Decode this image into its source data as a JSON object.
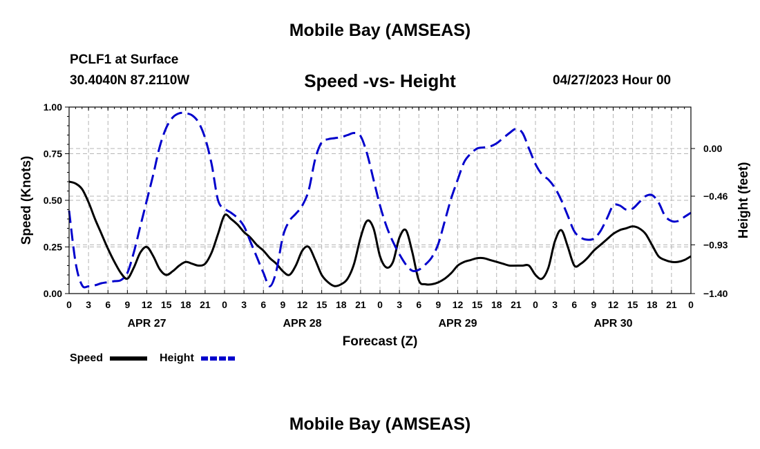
{
  "page": {
    "title": "Mobile Bay (AMSEAS)",
    "station": "PCLF1 at Surface",
    "coordinates": "30.4040N  87.2110W",
    "subtitle": "Speed -vs- Height",
    "datetime": "04/27/2023 Hour 00",
    "footer_title": "Mobile Bay (AMSEAS)"
  },
  "chart_data": {
    "type": "line",
    "title": "Speed -vs- Height",
    "xlabel": "Forecast (Z)",
    "ylabel": "Speed (Knots)",
    "y2label": "Height (feet)",
    "xlim": [
      0,
      96
    ],
    "ylim": [
      0,
      1
    ],
    "y2lim": [
      -1.4,
      0.4
    ],
    "x_ticks": [
      0,
      3,
      6,
      9,
      12,
      15,
      18,
      21,
      24,
      27,
      30,
      33,
      36,
      39,
      42,
      45,
      48,
      51,
      54,
      57,
      60,
      63,
      66,
      69,
      72,
      75,
      78,
      81,
      84,
      87,
      90,
      93,
      96
    ],
    "x_tick_labels": [
      "0",
      "3",
      "6",
      "9",
      "12",
      "15",
      "18",
      "21",
      "0",
      "3",
      "6",
      "9",
      "12",
      "15",
      "18",
      "21",
      "0",
      "3",
      "6",
      "9",
      "12",
      "15",
      "18",
      "21",
      "0",
      "3",
      "6",
      "9",
      "12",
      "15",
      "18",
      "21",
      "0"
    ],
    "day_labels": [
      {
        "x": 12,
        "label": "APR 27"
      },
      {
        "x": 36,
        "label": "APR 28"
      },
      {
        "x": 60,
        "label": "APR 29"
      },
      {
        "x": 84,
        "label": "APR 30"
      }
    ],
    "y_ticks": [
      0,
      0.25,
      0.5,
      0.75,
      1
    ],
    "y_tick_labels": [
      "0.00",
      "0.25",
      "0.50",
      "0.75",
      "1.00"
    ],
    "y2_ticks": [
      0,
      -0.46,
      -0.93,
      -1.4
    ],
    "y2_tick_labels": [
      "0.00",
      "−0.46",
      "−0.93",
      "−1.40"
    ],
    "grid": true,
    "legend_position": "bottom-left",
    "series": [
      {
        "name": "Speed",
        "axis": "left",
        "color": "#000000",
        "style": "solid",
        "x": [
          0,
          1,
          2,
          3,
          4,
          5,
          6,
          7,
          8,
          9,
          10,
          11,
          12,
          13,
          14,
          15,
          16,
          17,
          18,
          19,
          20,
          21,
          22,
          23,
          24,
          25,
          26,
          27,
          28,
          29,
          30,
          31,
          32,
          33,
          34,
          35,
          36,
          37,
          38,
          39,
          40,
          41,
          42,
          43,
          44,
          45,
          46,
          47,
          48,
          49,
          50,
          51,
          52,
          53,
          54,
          55,
          56,
          57,
          58,
          59,
          60,
          61,
          62,
          63,
          64,
          65,
          66,
          67,
          68,
          69,
          70,
          71,
          72,
          73,
          74,
          75,
          76,
          77,
          78,
          79,
          80,
          81,
          82,
          83,
          84,
          85,
          86,
          87,
          88,
          89,
          90,
          91,
          92,
          93,
          94,
          95,
          96
        ],
        "values": [
          0.6,
          0.59,
          0.56,
          0.49,
          0.4,
          0.32,
          0.24,
          0.17,
          0.11,
          0.08,
          0.14,
          0.22,
          0.25,
          0.2,
          0.13,
          0.1,
          0.12,
          0.15,
          0.17,
          0.16,
          0.15,
          0.16,
          0.22,
          0.32,
          0.42,
          0.4,
          0.37,
          0.33,
          0.3,
          0.26,
          0.23,
          0.19,
          0.16,
          0.12,
          0.1,
          0.15,
          0.23,
          0.25,
          0.18,
          0.1,
          0.06,
          0.04,
          0.05,
          0.08,
          0.16,
          0.3,
          0.39,
          0.35,
          0.2,
          0.14,
          0.17,
          0.3,
          0.34,
          0.22,
          0.07,
          0.05,
          0.05,
          0.06,
          0.08,
          0.11,
          0.15,
          0.17,
          0.18,
          0.19,
          0.19,
          0.18,
          0.17,
          0.16,
          0.15,
          0.15,
          0.15,
          0.15,
          0.1,
          0.08,
          0.14,
          0.28,
          0.34,
          0.25,
          0.15,
          0.16,
          0.19,
          0.23,
          0.26,
          0.29,
          0.32,
          0.34,
          0.35,
          0.36,
          0.35,
          0.32,
          0.26,
          0.2,
          0.18,
          0.17,
          0.17,
          0.18,
          0.2
        ]
      },
      {
        "name": "Height",
        "axis": "right",
        "color": "#0000cc",
        "style": "dashed",
        "x": [
          0,
          1,
          2,
          3,
          4,
          5,
          6,
          7,
          8,
          9,
          10,
          11,
          12,
          13,
          14,
          15,
          16,
          17,
          18,
          19,
          20,
          21,
          22,
          23,
          24,
          25,
          26,
          27,
          28,
          29,
          30,
          31,
          32,
          33,
          34,
          35,
          36,
          37,
          38,
          39,
          40,
          41,
          42,
          43,
          44,
          45,
          46,
          47,
          48,
          49,
          50,
          51,
          52,
          53,
          54,
          55,
          56,
          57,
          58,
          59,
          60,
          61,
          62,
          63,
          64,
          65,
          66,
          67,
          68,
          69,
          70,
          71,
          72,
          73,
          74,
          75,
          76,
          77,
          78,
          79,
          80,
          81,
          82,
          83,
          84,
          85,
          86,
          87,
          88,
          89,
          90,
          91,
          92,
          93,
          94,
          95,
          96
        ],
        "values": [
          -0.6,
          -1.1,
          -1.32,
          -1.33,
          -1.32,
          -1.3,
          -1.29,
          -1.28,
          -1.27,
          -1.2,
          -1.0,
          -0.75,
          -0.5,
          -0.25,
          0.02,
          0.2,
          0.3,
          0.34,
          0.34,
          0.32,
          0.25,
          0.1,
          -0.15,
          -0.5,
          -0.58,
          -0.62,
          -0.67,
          -0.75,
          -0.9,
          -1.05,
          -1.2,
          -1.33,
          -1.18,
          -0.85,
          -0.7,
          -0.63,
          -0.55,
          -0.4,
          -0.1,
          0.06,
          0.09,
          0.1,
          0.11,
          0.13,
          0.15,
          0.12,
          -0.05,
          -0.3,
          -0.55,
          -0.75,
          -0.9,
          -1.02,
          -1.12,
          -1.18,
          -1.17,
          -1.12,
          -1.05,
          -0.92,
          -0.7,
          -0.48,
          -0.3,
          -0.13,
          -0.05,
          0.0,
          0.01,
          0.02,
          0.05,
          0.1,
          0.15,
          0.19,
          0.15,
          0.0,
          -0.15,
          -0.25,
          -0.3,
          -0.38,
          -0.5,
          -0.65,
          -0.8,
          -0.86,
          -0.88,
          -0.87,
          -0.8,
          -0.68,
          -0.55,
          -0.55,
          -0.59,
          -0.58,
          -0.52,
          -0.46,
          -0.45,
          -0.52,
          -0.65,
          -0.7,
          -0.7,
          -0.66,
          -0.62
        ]
      }
    ]
  },
  "legend": {
    "items": [
      {
        "label": "Speed",
        "color": "#000000",
        "style": "solid"
      },
      {
        "label": "Height",
        "color": "#0000cc",
        "style": "dashed"
      }
    ]
  }
}
